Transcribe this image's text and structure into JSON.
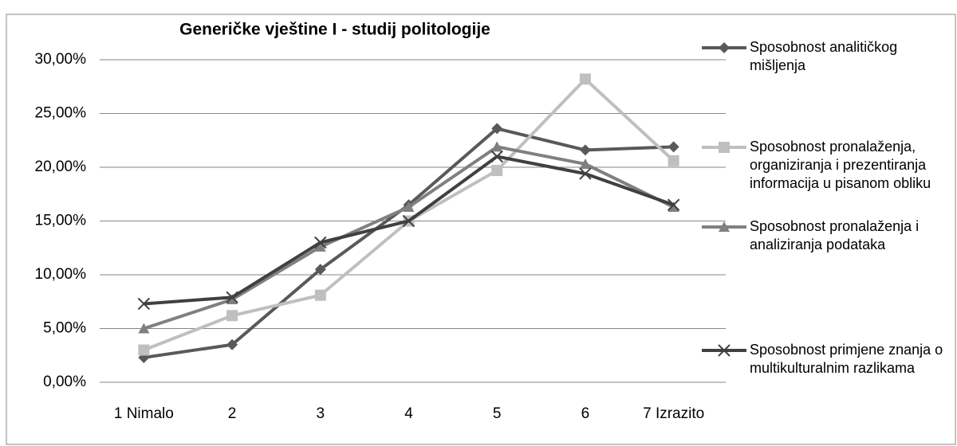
{
  "chart_data": {
    "type": "line",
    "title": "Generičke vještine I -  studij politologije",
    "categories": [
      "1 Nimalo",
      "2",
      "3",
      "4",
      "5",
      "6",
      "7 Izrazito"
    ],
    "ylim": [
      0,
      30
    ],
    "yticks": [
      {
        "value": 0,
        "label": "0,00%"
      },
      {
        "value": 5,
        "label": "5,00%"
      },
      {
        "value": 10,
        "label": "10,00%"
      },
      {
        "value": 15,
        "label": "15,00%"
      },
      {
        "value": 20,
        "label": "20,00%"
      },
      {
        "value": 25,
        "label": "25,00%"
      },
      {
        "value": 30,
        "label": "30,00%"
      }
    ],
    "grid": true,
    "legend": "right",
    "series": [
      {
        "name": "Sposobnost analitičkog mišljenja",
        "color": "#595959",
        "marker": "diamond",
        "values": [
          2.3,
          3.5,
          10.5,
          16.5,
          23.6,
          21.6,
          21.9
        ]
      },
      {
        "name": "Sposobnost pronalaženja, organiziranja i prezentiranja informacija u pisanom obliku",
        "color": "#bfbfbf",
        "marker": "square",
        "values": [
          3.0,
          6.2,
          8.1,
          15.0,
          19.7,
          28.2,
          20.6
        ]
      },
      {
        "name": "Sposobnost pronalaženja i analiziranja podataka",
        "color": "#808080",
        "marker": "triangle",
        "values": [
          5.0,
          7.7,
          12.6,
          16.3,
          21.9,
          20.3,
          16.3
        ]
      },
      {
        "name": "Sposobnost primjene znanja o multikulturalnim razlikama",
        "color": "#404040",
        "marker": "x",
        "values": [
          7.3,
          7.9,
          13.0,
          15.0,
          21.0,
          19.4,
          16.5
        ]
      }
    ]
  }
}
